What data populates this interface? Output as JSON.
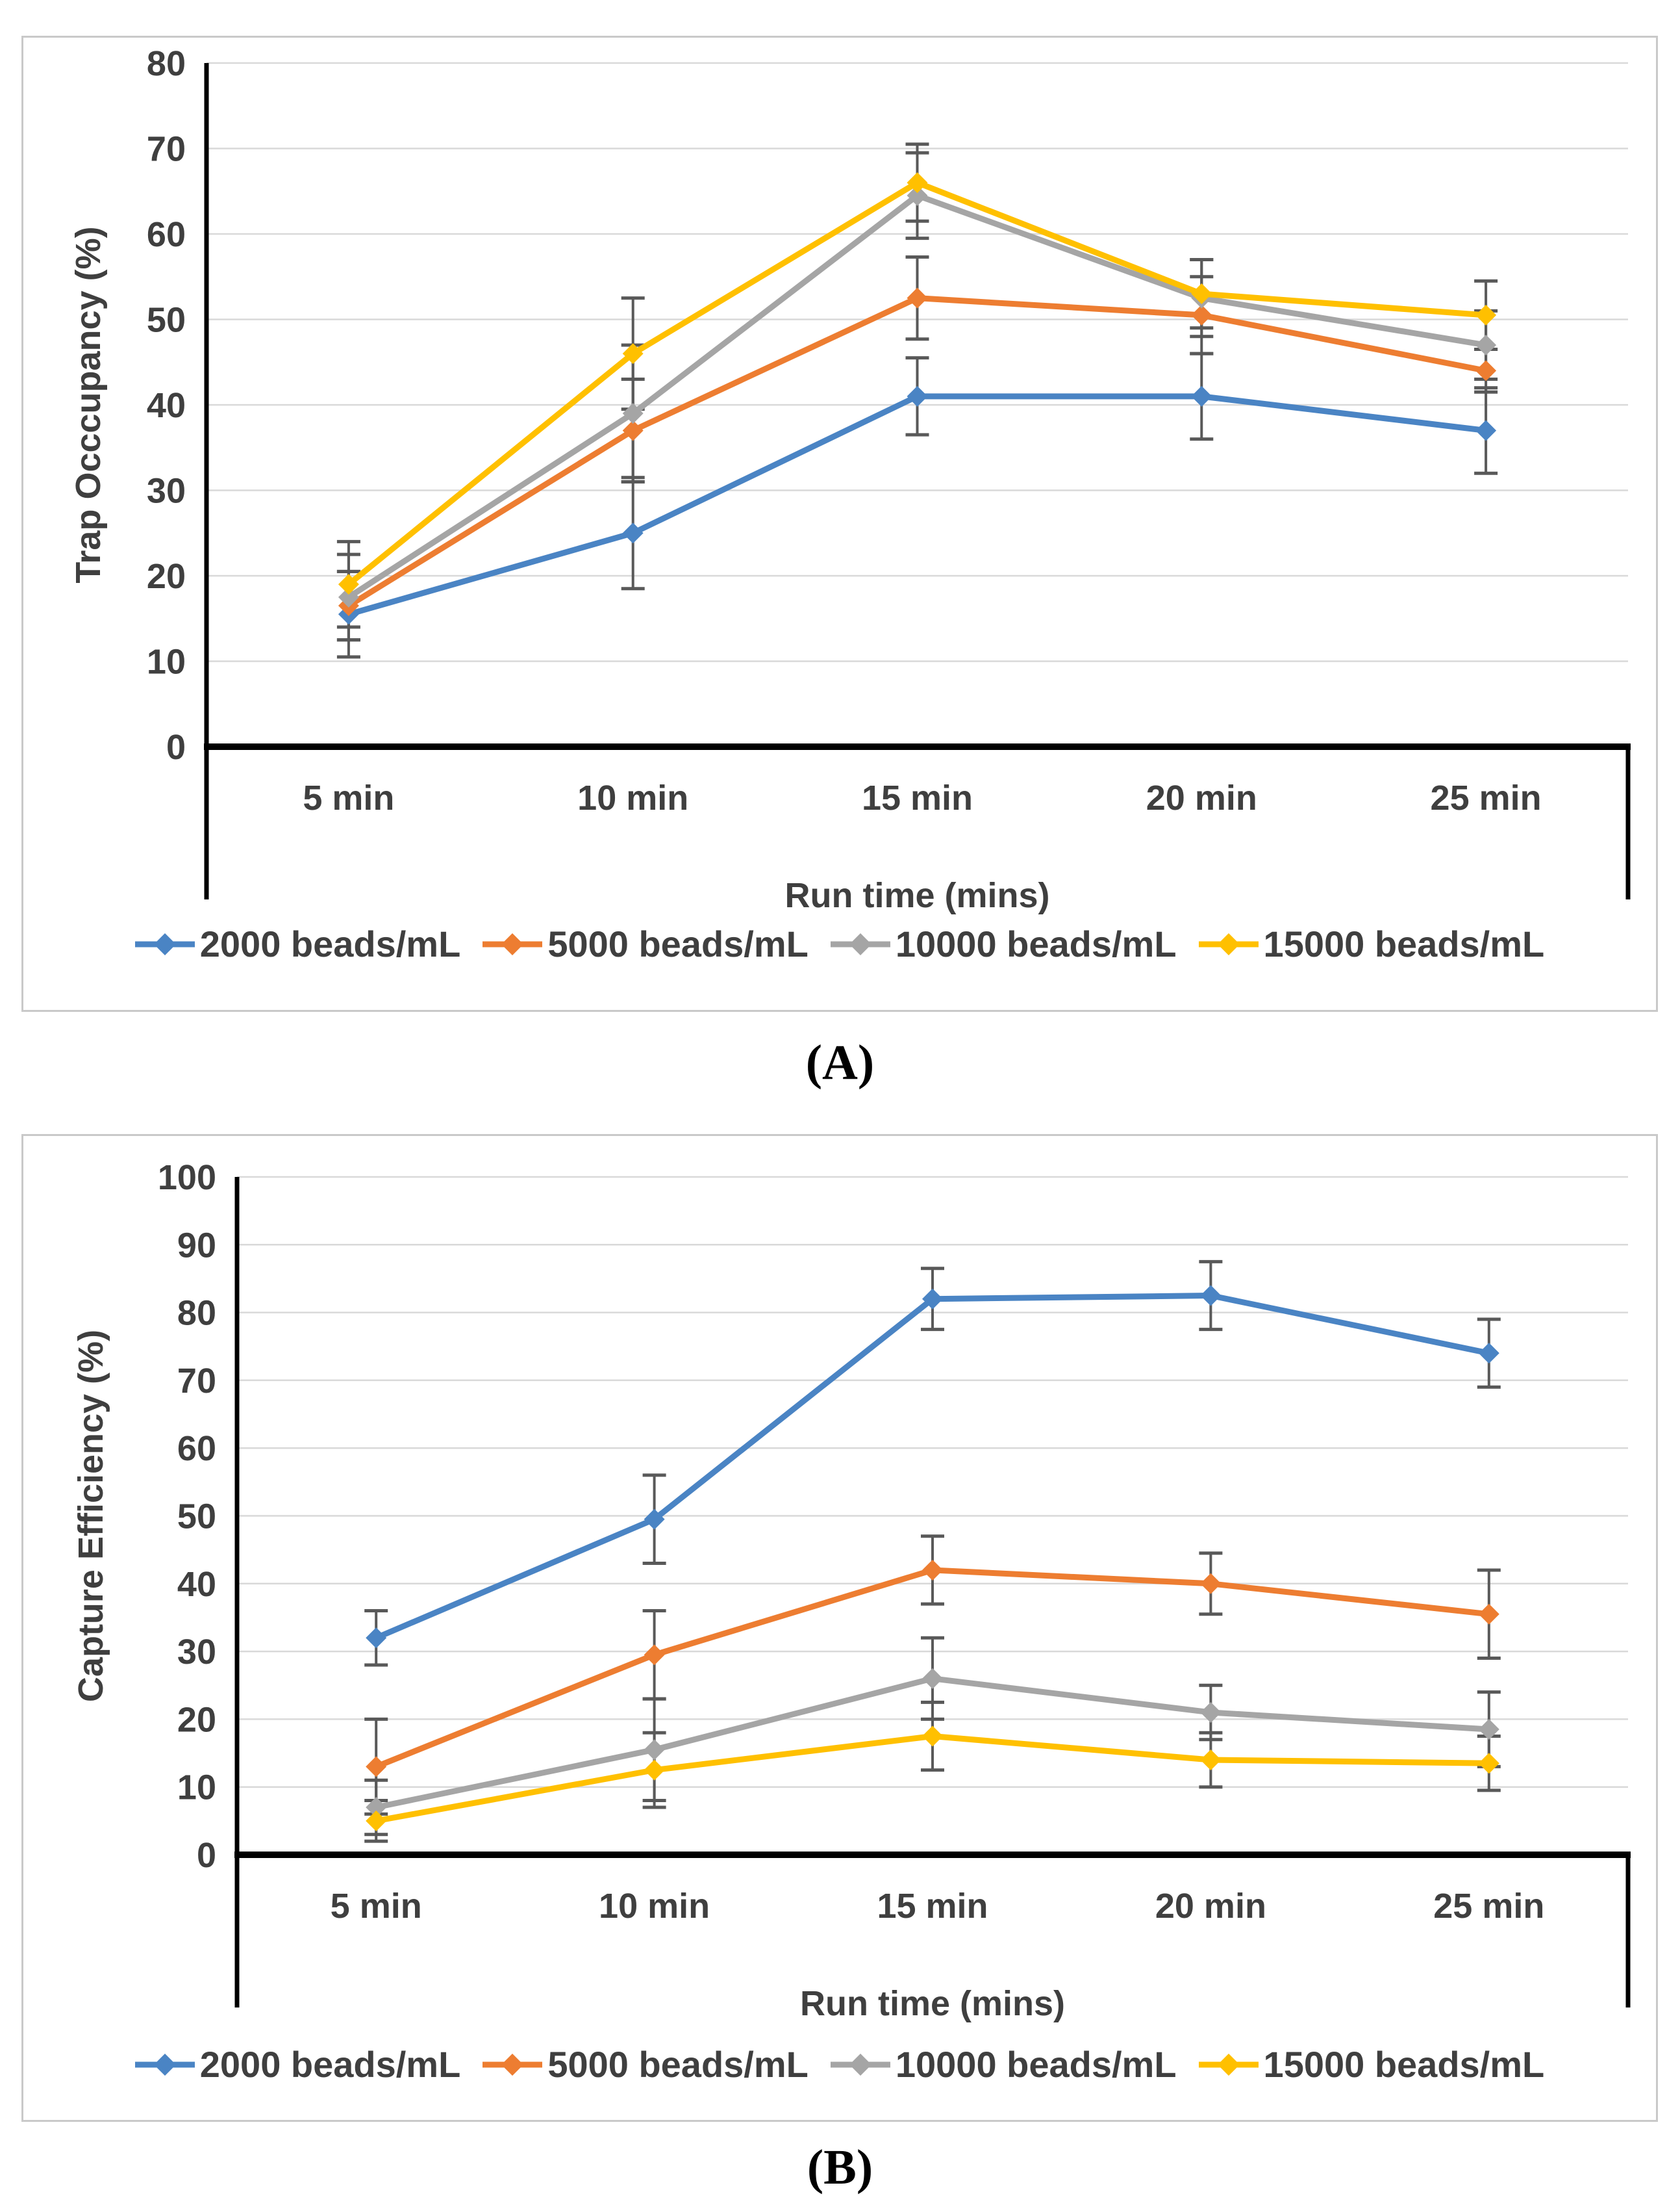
{
  "captions": {
    "a": "(A)",
    "b": "(B)"
  },
  "colors": {
    "series_blue": "#4a84c4",
    "series_orange": "#ed7d31",
    "series_gray": "#a5a5a5",
    "series_yellow": "#ffc000",
    "error_bar": "#595959",
    "grid_line": "#d9d9d9",
    "axis_line": "#000000",
    "label_text": "#3f3f3f",
    "panel_border": "#c9c9c9"
  },
  "chart_data": [
    {
      "type": "line",
      "panel_label": "(A)",
      "ylabel": "Trap Occcupancy (%)",
      "xlabel": "Run time (mins)",
      "categories": [
        "5 min",
        "10 min",
        "15 min",
        "20 min",
        "25 min"
      ],
      "ylim": [
        0,
        80
      ],
      "ytick_step": 10,
      "grid": true,
      "legend_position": "bottom",
      "error_bars": true,
      "series": [
        {
          "name": "2000 beads/mL",
          "color": "#4a84c4",
          "values": [
            15.5,
            25,
            41,
            41,
            37
          ],
          "errors": [
            5,
            6.5,
            4.5,
            5,
            5
          ]
        },
        {
          "name": "5000 beads/mL",
          "color": "#ed7d31",
          "values": [
            16.5,
            37,
            52.5,
            50.5,
            44
          ],
          "errors": [
            4,
            6,
            4.8,
            4.5,
            2.5
          ]
        },
        {
          "name": "10000 beads/mL",
          "color": "#a5a5a5",
          "values": [
            17.5,
            39,
            64.5,
            52.5,
            47
          ],
          "errors": [
            5,
            8,
            5,
            4.5,
            4
          ]
        },
        {
          "name": "15000 beads/mL",
          "color": "#ffc000",
          "values": [
            19,
            46,
            66,
            53,
            50.5
          ],
          "errors": [
            5,
            6.5,
            4.5,
            4,
            4
          ]
        }
      ]
    },
    {
      "type": "line",
      "panel_label": "(B)",
      "ylabel": "Capture Efficiency  (%)",
      "xlabel": "Run time (mins)",
      "categories": [
        "5 min",
        "10 min",
        "15 min",
        "20 min",
        "25 min"
      ],
      "ylim": [
        0,
        100
      ],
      "ytick_step": 10,
      "grid": true,
      "legend_position": "bottom",
      "error_bars": true,
      "series": [
        {
          "name": "2000 beads/mL",
          "color": "#4a84c4",
          "values": [
            32,
            49.5,
            82,
            82.5,
            74
          ],
          "errors": [
            4,
            6.5,
            4.5,
            5,
            5
          ]
        },
        {
          "name": "5000 beads/mL",
          "color": "#ed7d31",
          "values": [
            13,
            29.5,
            42,
            40,
            35.5
          ],
          "errors": [
            7,
            6.5,
            5,
            4.5,
            6.5
          ]
        },
        {
          "name": "10000 beads/mL",
          "color": "#a5a5a5",
          "values": [
            7,
            15.5,
            26,
            21,
            18.5
          ],
          "errors": [
            4,
            7.5,
            6,
            4,
            5.5
          ]
        },
        {
          "name": "15000 beads/mL",
          "color": "#ffc000",
          "values": [
            5,
            12.5,
            17.5,
            14,
            13.5
          ],
          "errors": [
            3,
            5.5,
            5,
            4,
            4
          ]
        }
      ]
    }
  ]
}
